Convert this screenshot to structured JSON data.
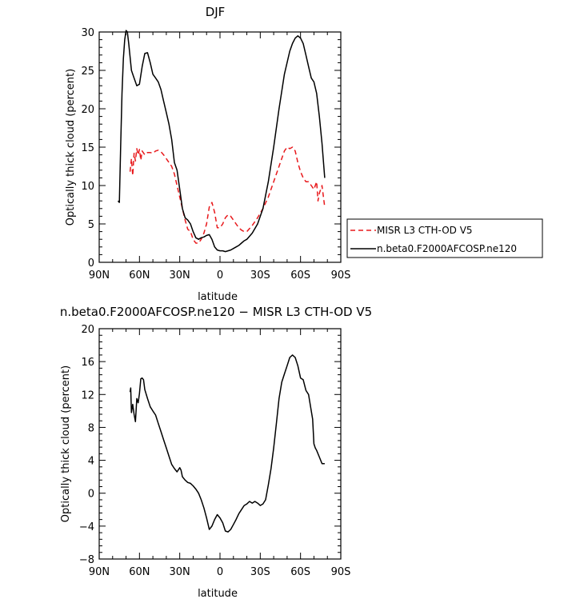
{
  "chart_data": [
    {
      "type": "line",
      "title": "DJF",
      "xlabel": "latitude",
      "ylabel": "Optically thick cloud (percent)",
      "xlim": [
        90,
        -90
      ],
      "ylim": [
        0,
        30
      ],
      "xticks": [
        90,
        60,
        30,
        0,
        -30,
        -60,
        -90
      ],
      "xtick_labels": [
        "90N",
        "60N",
        "30N",
        "0",
        "30S",
        "60S",
        "90S"
      ],
      "yticks": [
        0,
        5,
        10,
        15,
        20,
        25,
        30
      ],
      "ytick_labels": [
        "0",
        "5",
        "10",
        "15",
        "20",
        "25",
        "30"
      ],
      "legend_position": "outside-right",
      "series": [
        {
          "name": "MISR L3 CTH-OD V5",
          "color": "#e8191c",
          "dash": "dashed",
          "x": [
            67,
            66,
            65,
            64,
            63,
            62,
            61,
            60,
            59,
            58,
            56,
            54,
            52,
            50,
            48,
            46,
            44,
            42,
            40,
            38,
            36,
            34,
            32,
            30,
            28,
            26,
            24,
            22,
            20,
            18,
            16,
            14,
            12,
            10,
            8,
            6,
            4,
            2,
            0,
            -2,
            -4,
            -6,
            -8,
            -10,
            -12,
            -14,
            -16,
            -18,
            -20,
            -24,
            -28,
            -32,
            -36,
            -40,
            -44,
            -48,
            -50,
            -52,
            -54,
            -56,
            -58,
            -60,
            -62,
            -64,
            -66,
            -68,
            -70,
            -72,
            -73,
            -74,
            -76,
            -78
          ],
          "y": [
            11.8,
            13.5,
            11.3,
            14.2,
            13.2,
            14.8,
            14.0,
            14.7,
            13.3,
            14.5,
            14.0,
            14.3,
            14.3,
            14.2,
            14.5,
            14.6,
            14.4,
            14.0,
            13.5,
            13.0,
            12.5,
            11.5,
            10.0,
            8.5,
            7.0,
            5.5,
            4.3,
            4.0,
            3.0,
            2.5,
            2.5,
            3.0,
            3.8,
            5.0,
            7.2,
            7.8,
            6.5,
            4.5,
            4.5,
            5.0,
            5.8,
            6.2,
            6.0,
            5.5,
            5.0,
            4.5,
            4.2,
            4.0,
            4.0,
            4.8,
            5.8,
            7.0,
            8.5,
            10.5,
            12.5,
            14.5,
            15.0,
            14.8,
            15.0,
            14.5,
            13.0,
            11.8,
            11.0,
            10.5,
            10.5,
            10.0,
            9.5,
            10.5,
            8.0,
            9.0,
            10.0,
            7.2
          ]
        },
        {
          "name": "n.beta0.F2000AFCOSP.ne120",
          "color": "#000000",
          "dash": "solid",
          "x": [
            76,
            75,
            74,
            73,
            72,
            71,
            70,
            69,
            68,
            66,
            64,
            62,
            60,
            58,
            56,
            54,
            52,
            50,
            48,
            46,
            44,
            42,
            40,
            38,
            36,
            34,
            32,
            30,
            28,
            26,
            24,
            22,
            20,
            18,
            16,
            14,
            12,
            10,
            8,
            6,
            4,
            2,
            0,
            -2,
            -4,
            -6,
            -8,
            -10,
            -12,
            -14,
            -16,
            -18,
            -20,
            -24,
            -28,
            -32,
            -36,
            -40,
            -44,
            -48,
            -52,
            -54,
            -56,
            -58,
            -60,
            -62,
            -64,
            -66,
            -68,
            -70,
            -72,
            -74,
            -76,
            -78
          ],
          "y": [
            8.0,
            7.8,
            15.0,
            22.0,
            26.5,
            29.0,
            30.2,
            30.0,
            28.5,
            25.0,
            24.0,
            23.0,
            23.2,
            25.5,
            27.2,
            27.3,
            26.0,
            24.5,
            24.0,
            23.5,
            22.5,
            21.0,
            19.5,
            18.0,
            16.0,
            13.0,
            12.0,
            9.5,
            7.0,
            5.8,
            5.5,
            5.0,
            4.0,
            3.2,
            3.0,
            3.2,
            3.3,
            3.5,
            3.6,
            3.0,
            2.0,
            1.6,
            1.5,
            1.5,
            1.4,
            1.5,
            1.6,
            1.8,
            2.0,
            2.2,
            2.5,
            2.8,
            3.0,
            3.8,
            5.0,
            7.0,
            10.5,
            15.0,
            20.0,
            24.5,
            27.5,
            28.5,
            29.2,
            29.5,
            29.2,
            28.5,
            27.0,
            25.5,
            24.0,
            23.5,
            22.0,
            19.0,
            15.5,
            11.0
          ]
        }
      ]
    },
    {
      "type": "line",
      "title": "n.beta0.F2000AFCOSP.ne120 − MISR L3 CTH-OD V5",
      "xlabel": "latitude",
      "ylabel": "Optically thick cloud (percent)",
      "xlim": [
        90,
        -90
      ],
      "ylim": [
        -8,
        20
      ],
      "xticks": [
        90,
        60,
        30,
        0,
        -30,
        -60,
        -90
      ],
      "xtick_labels": [
        "90N",
        "60N",
        "30N",
        "0",
        "30S",
        "60S",
        "90S"
      ],
      "yticks": [
        -8,
        -4,
        0,
        4,
        8,
        12,
        16,
        20
      ],
      "ytick_labels": [
        "−8",
        "−4",
        "0",
        "4",
        "8",
        "12",
        "16",
        "20"
      ],
      "series": [
        {
          "color": "#000000",
          "dash": "solid",
          "x": [
            67,
            66.5,
            66,
            65,
            64,
            63,
            62,
            61,
            60,
            59,
            58,
            57,
            56,
            54,
            52,
            50,
            48,
            46,
            44,
            42,
            40,
            38,
            36,
            34,
            32,
            30,
            29,
            28,
            26,
            24,
            22,
            20,
            18,
            16,
            14,
            12,
            10,
            8,
            6,
            4,
            2,
            0,
            -2,
            -4,
            -6,
            -8,
            -10,
            -12,
            -14,
            -16,
            -18,
            -20,
            -22,
            -24,
            -26,
            -28,
            -30,
            -32,
            -34,
            -36,
            -38,
            -40,
            -42,
            -44,
            -46,
            -48,
            -50,
            -52,
            -54,
            -56,
            -58,
            -60,
            -62,
            -64,
            -66,
            -68,
            -69,
            -70,
            -71,
            -72,
            -74,
            -76,
            -78
          ],
          "y": [
            12.3,
            12.8,
            9.8,
            10.8,
            9.6,
            8.7,
            11.5,
            11.0,
            12.1,
            13.9,
            14.0,
            13.8,
            12.6,
            11.5,
            10.5,
            10.0,
            9.5,
            8.5,
            7.5,
            6.5,
            5.5,
            4.5,
            3.5,
            3.0,
            2.6,
            3.1,
            2.8,
            2.0,
            1.6,
            1.3,
            1.2,
            0.9,
            0.5,
            0.0,
            -0.8,
            -1.8,
            -3.0,
            -4.4,
            -4.0,
            -3.2,
            -2.6,
            -3.0,
            -3.6,
            -4.6,
            -4.7,
            -4.4,
            -3.8,
            -3.2,
            -2.5,
            -2.0,
            -1.5,
            -1.3,
            -1.0,
            -1.2,
            -1.0,
            -1.2,
            -1.5,
            -1.3,
            -0.8,
            1.0,
            3.0,
            5.5,
            8.5,
            11.5,
            13.5,
            14.5,
            15.5,
            16.5,
            16.8,
            16.5,
            15.5,
            14.0,
            13.8,
            12.5,
            12.0,
            10.0,
            9.0,
            6.0,
            5.5,
            5.2,
            4.4,
            3.6,
            3.6
          ]
        }
      ]
    }
  ]
}
